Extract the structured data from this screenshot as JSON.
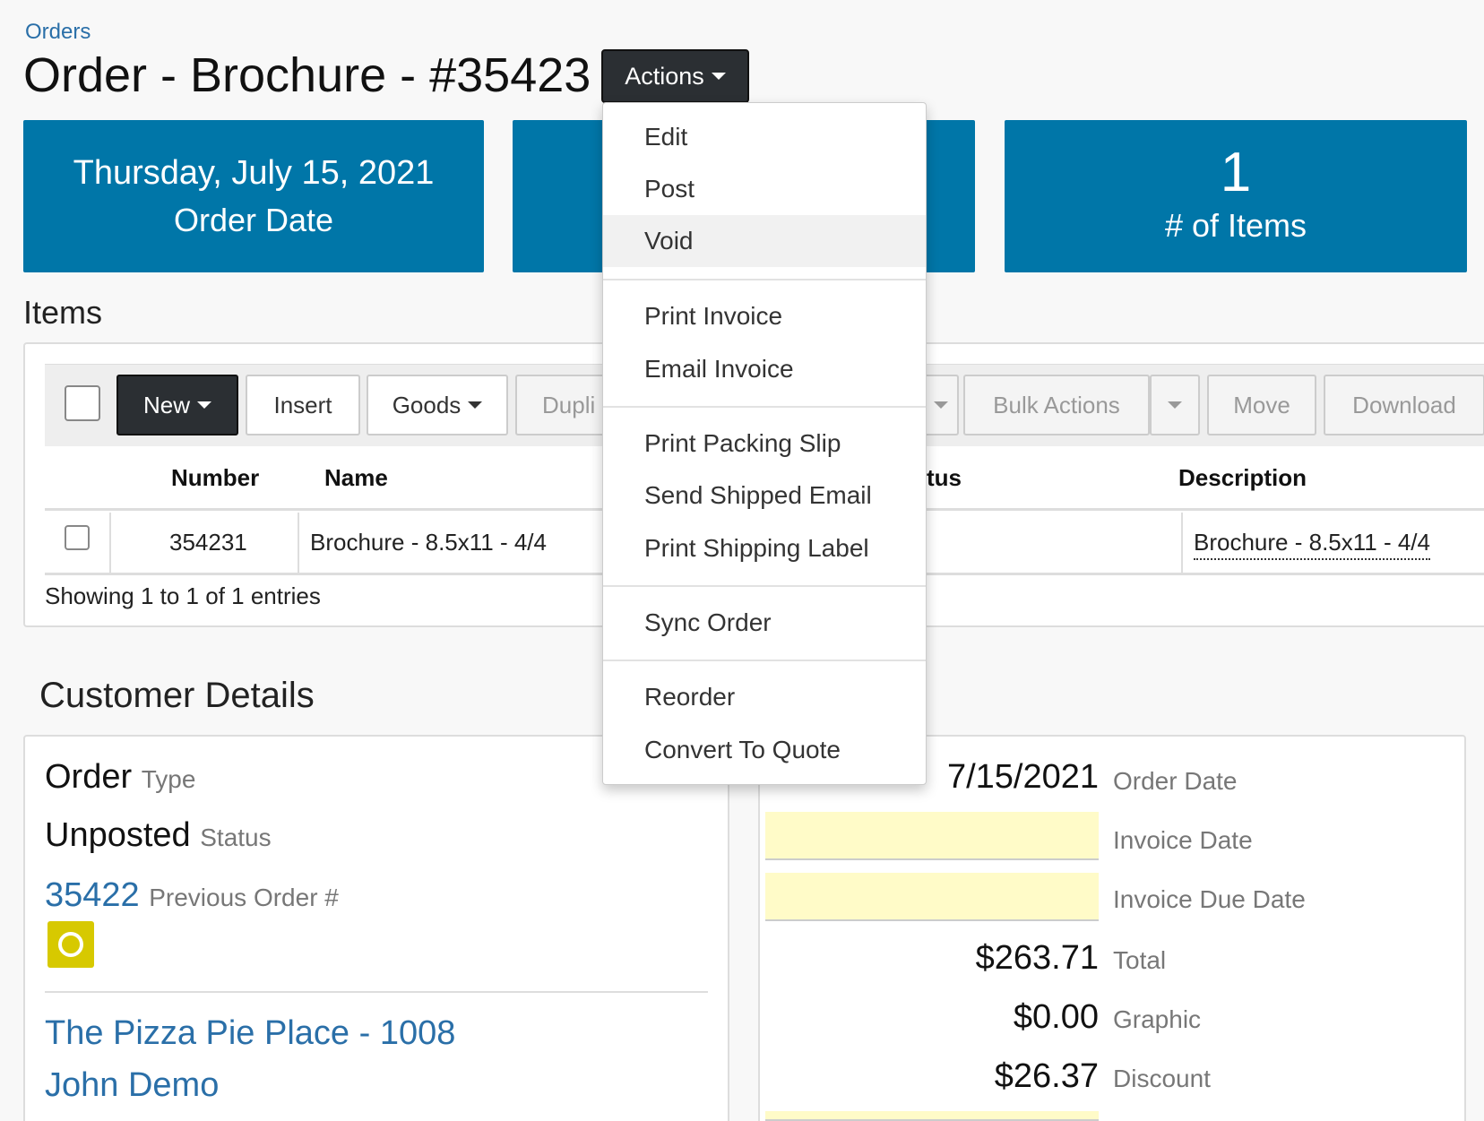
{
  "breadcrumb": "Orders",
  "title": "Order - Brochure - #35423",
  "actions_label": "Actions",
  "tiles": {
    "order_date_value": "Thursday, July 15, 2021",
    "order_date_label": "Order Date",
    "items_count": "1",
    "items_label": "# of Items"
  },
  "items_section": "Items",
  "toolbar": {
    "new": "New",
    "insert": "Insert",
    "goods": "Goods",
    "duplicate": "Dupli",
    "bulk_actions": "Bulk Actions",
    "move": "Move",
    "download": "Download"
  },
  "table": {
    "headers": {
      "number": "Number",
      "name": "Name",
      "status": "tus",
      "description": "Description"
    },
    "row": {
      "number": "354231",
      "name": "Brochure - 8.5x11 - 4/4",
      "description": "Brochure - 8.5x11 - 4/4"
    },
    "entries": "Showing 1 to 1 of 1 entries"
  },
  "customer_section": "Customer Details",
  "customer": {
    "order_type_value": "Order",
    "order_type_label": "Type",
    "status_value": "Unposted",
    "status_label": "Status",
    "prev_order_value": "35422",
    "prev_order_label": "Previous Order #",
    "company": "The Pizza Pie Place - 1008",
    "contact": "John Demo"
  },
  "details": {
    "order_date_value": "7/15/2021",
    "order_date_label": "Order Date",
    "invoice_date_label": "Invoice Date",
    "invoice_due_label": "Invoice Due Date",
    "total_value": "$263.71",
    "total_label": "Total",
    "graphic_value": "$0.00",
    "graphic_label": "Graphic",
    "discount_value": "$26.37",
    "discount_label": "Discount"
  },
  "menu": {
    "edit": "Edit",
    "post": "Post",
    "void": "Void",
    "print_invoice": "Print Invoice",
    "email_invoice": "Email Invoice",
    "print_packing_slip": "Print Packing Slip",
    "send_shipped_email": "Send Shipped Email",
    "print_shipping_label": "Print Shipping Label",
    "sync_order": "Sync Order",
    "reorder": "Reorder",
    "convert_to_quote": "Convert To Quote"
  },
  "colors": {
    "tile_blue": "#0076a8",
    "link_blue": "#2a6fa8",
    "dark_button": "#2b2f33",
    "highlight_yellow": "#fffbc8",
    "badge_yellow": "#d7c900"
  }
}
